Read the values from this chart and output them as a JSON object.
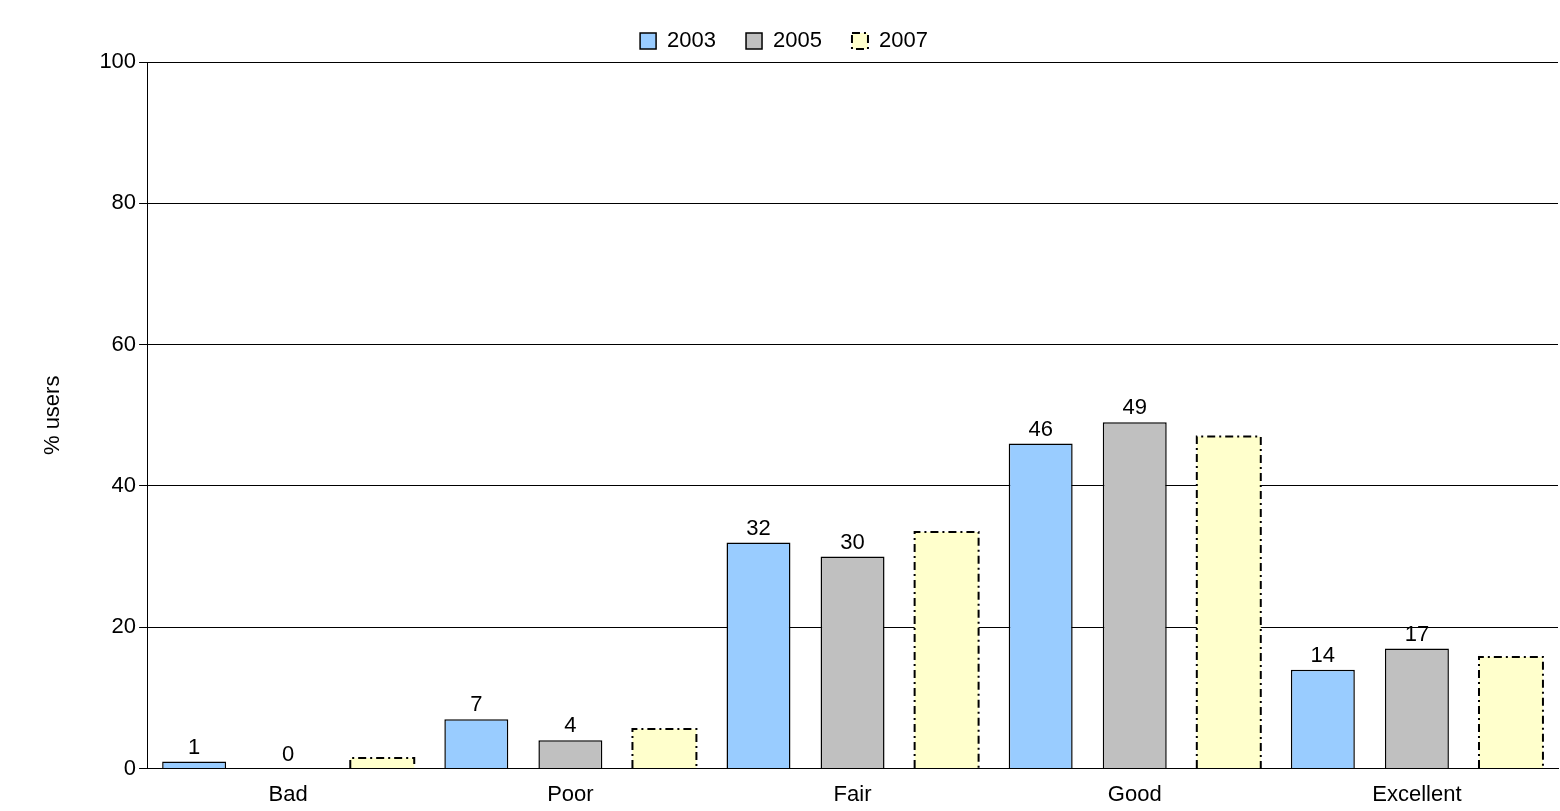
{
  "chart_data": {
    "type": "bar",
    "ylabel": "% users",
    "categories": [
      "Bad",
      "Poor",
      "Fair",
      "Good",
      "Excellent"
    ],
    "series": [
      {
        "name": "2003",
        "color": "#99ccff",
        "values": [
          1,
          7,
          32,
          46,
          14
        ],
        "value_labels": [
          "1",
          "7",
          "32",
          "46",
          "14"
        ]
      },
      {
        "name": "2005",
        "color": "#c0c0c0",
        "values": [
          0,
          4,
          30,
          49,
          17
        ],
        "value_labels": [
          "0",
          "4",
          "30",
          "49",
          "17"
        ]
      },
      {
        "name": "2007",
        "color": "#ffffcc",
        "values": [
          1.5,
          5.6,
          33.5,
          47,
          15.8
        ],
        "line_style": "dashed"
      }
    ],
    "ylim": [
      0,
      100
    ],
    "yticks": [
      0,
      20,
      40,
      60,
      80,
      100
    ],
    "grid": "y",
    "legend": "top"
  }
}
